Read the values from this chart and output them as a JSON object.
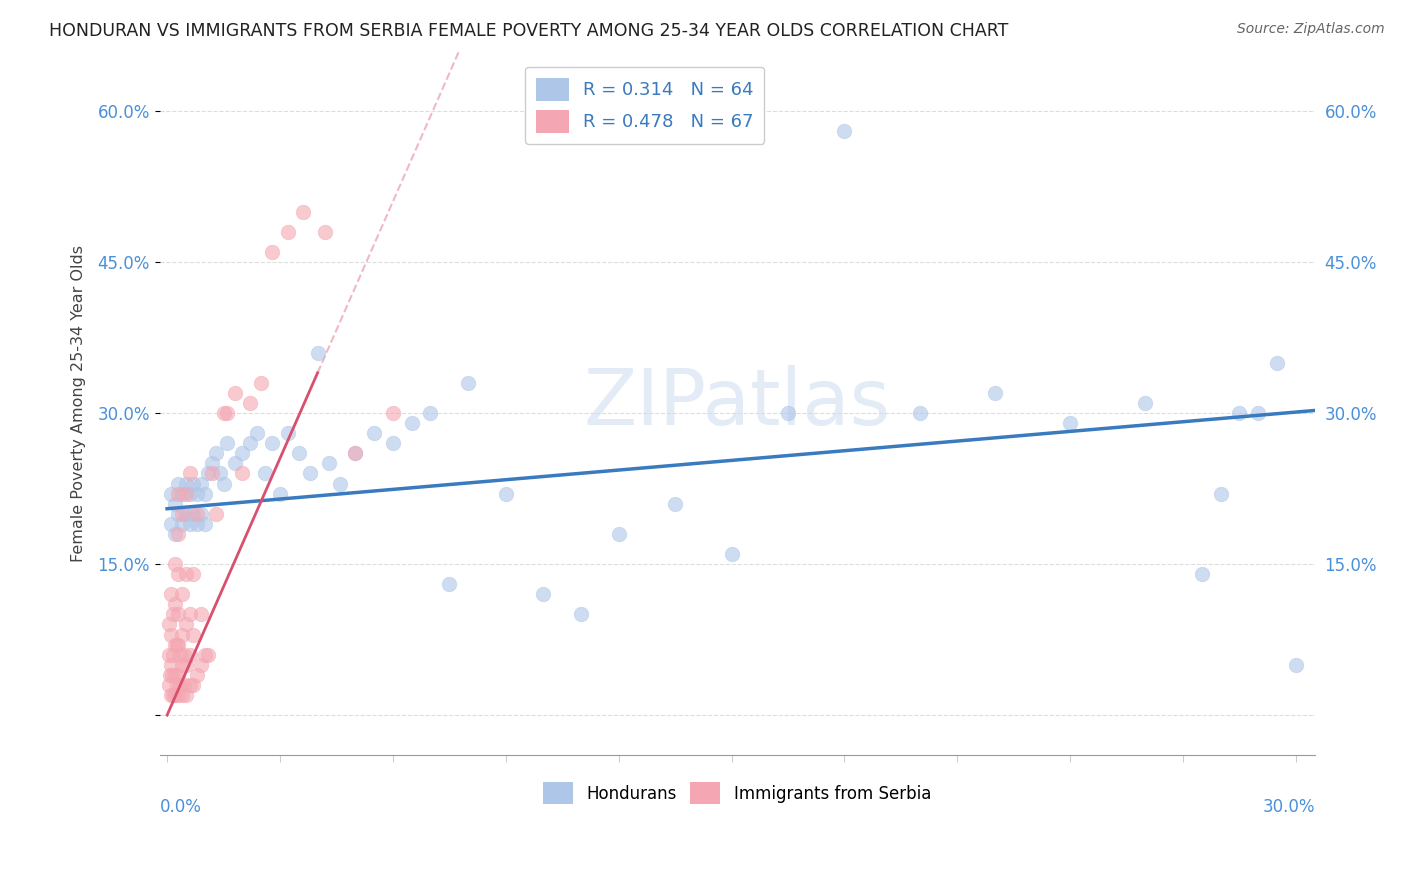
{
  "title": "HONDURAN VS IMMIGRANTS FROM SERBIA FEMALE POVERTY AMONG 25-34 YEAR OLDS CORRELATION CHART",
  "source": "Source: ZipAtlas.com",
  "ylabel": "Female Poverty Among 25-34 Year Olds",
  "y_ticks": [
    0.0,
    0.15,
    0.3,
    0.45,
    0.6
  ],
  "y_tick_labels": [
    "",
    "15.0%",
    "30.0%",
    "45.0%",
    "60.0%"
  ],
  "x_lim": [
    -0.002,
    0.305
  ],
  "y_lim": [
    -0.04,
    0.66
  ],
  "blue_color": "#aec6e8",
  "pink_color": "#f4a7b2",
  "regression_blue_color": "#3a7abf",
  "regression_pink_color": "#d94f6e",
  "watermark": "ZIPatlas",
  "hondurans_x": [
    0.001,
    0.001,
    0.002,
    0.002,
    0.003,
    0.003,
    0.004,
    0.004,
    0.005,
    0.005,
    0.006,
    0.006,
    0.007,
    0.007,
    0.008,
    0.008,
    0.009,
    0.009,
    0.01,
    0.01,
    0.011,
    0.012,
    0.013,
    0.014,
    0.015,
    0.016,
    0.018,
    0.02,
    0.022,
    0.024,
    0.026,
    0.028,
    0.03,
    0.032,
    0.035,
    0.038,
    0.04,
    0.043,
    0.046,
    0.05,
    0.055,
    0.06,
    0.065,
    0.07,
    0.075,
    0.08,
    0.09,
    0.1,
    0.11,
    0.12,
    0.135,
    0.15,
    0.165,
    0.18,
    0.2,
    0.22,
    0.24,
    0.26,
    0.275,
    0.28,
    0.285,
    0.29,
    0.295,
    0.3
  ],
  "hondurans_y": [
    0.22,
    0.19,
    0.21,
    0.18,
    0.23,
    0.2,
    0.22,
    0.19,
    0.23,
    0.2,
    0.22,
    0.19,
    0.23,
    0.2,
    0.22,
    0.19,
    0.23,
    0.2,
    0.22,
    0.19,
    0.24,
    0.25,
    0.26,
    0.24,
    0.23,
    0.27,
    0.25,
    0.26,
    0.27,
    0.28,
    0.24,
    0.27,
    0.22,
    0.28,
    0.26,
    0.24,
    0.36,
    0.25,
    0.23,
    0.26,
    0.28,
    0.27,
    0.29,
    0.3,
    0.13,
    0.33,
    0.22,
    0.12,
    0.1,
    0.18,
    0.21,
    0.16,
    0.3,
    0.58,
    0.3,
    0.32,
    0.29,
    0.31,
    0.14,
    0.22,
    0.3,
    0.3,
    0.35,
    0.05
  ],
  "serbia_x": [
    0.0005,
    0.0005,
    0.0005,
    0.0008,
    0.001,
    0.001,
    0.001,
    0.001,
    0.0012,
    0.0015,
    0.0015,
    0.0015,
    0.002,
    0.002,
    0.002,
    0.002,
    0.002,
    0.0025,
    0.0025,
    0.003,
    0.003,
    0.003,
    0.003,
    0.003,
    0.003,
    0.003,
    0.0035,
    0.0035,
    0.004,
    0.004,
    0.004,
    0.004,
    0.004,
    0.0045,
    0.0045,
    0.005,
    0.005,
    0.005,
    0.005,
    0.005,
    0.006,
    0.006,
    0.006,
    0.006,
    0.007,
    0.007,
    0.007,
    0.008,
    0.008,
    0.009,
    0.009,
    0.01,
    0.011,
    0.012,
    0.013,
    0.015,
    0.016,
    0.018,
    0.02,
    0.022,
    0.025,
    0.028,
    0.032,
    0.036,
    0.042,
    0.05,
    0.06
  ],
  "serbia_y": [
    0.03,
    0.06,
    0.09,
    0.04,
    0.02,
    0.05,
    0.08,
    0.12,
    0.04,
    0.02,
    0.06,
    0.1,
    0.02,
    0.04,
    0.07,
    0.11,
    0.15,
    0.03,
    0.07,
    0.02,
    0.04,
    0.07,
    0.1,
    0.14,
    0.18,
    0.22,
    0.03,
    0.06,
    0.02,
    0.05,
    0.08,
    0.12,
    0.2,
    0.03,
    0.06,
    0.02,
    0.05,
    0.09,
    0.14,
    0.22,
    0.03,
    0.06,
    0.1,
    0.24,
    0.03,
    0.08,
    0.14,
    0.04,
    0.2,
    0.05,
    0.1,
    0.06,
    0.06,
    0.24,
    0.2,
    0.3,
    0.3,
    0.32,
    0.24,
    0.31,
    0.33,
    0.46,
    0.48,
    0.5,
    0.48,
    0.26,
    0.3
  ],
  "blue_reg_intercept": 0.205,
  "blue_reg_slope": 0.32,
  "pink_reg_intercept": 0.0,
  "pink_reg_slope": 8.5
}
